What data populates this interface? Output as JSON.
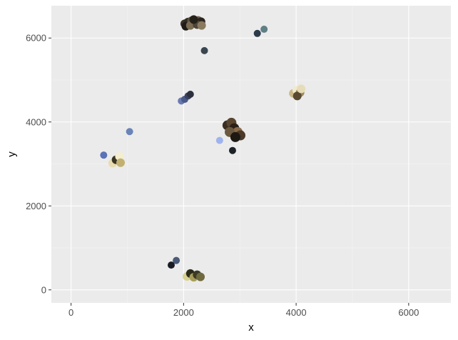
{
  "chart_data": {
    "type": "scatter",
    "title": "",
    "xlabel": "x",
    "ylabel": "y",
    "xlim": [
      -350,
      6750
    ],
    "ylim": [
      -310,
      6770
    ],
    "x_ticks": [
      0,
      2000,
      4000,
      6000
    ],
    "x_tick_labels": [
      "0",
      "2000",
      "4000",
      "6000"
    ],
    "y_ticks": [
      0,
      2000,
      4000,
      6000
    ],
    "y_tick_labels": [
      "0",
      "2000",
      "4000",
      "6000"
    ],
    "grid": true,
    "legend": "none",
    "colors": {
      "panel_background": "#ebebeb",
      "grid_major": "#ffffff",
      "grid_minor": "#f5f5f5",
      "tick_text": "#4d4d4d",
      "tick_mark": "#333333",
      "axis_title": "#000000"
    },
    "points": [
      {
        "x": 2020,
        "y": 6340,
        "color": "#3b3228",
        "size": 6
      },
      {
        "x": 2080,
        "y": 6380,
        "color": "#2e2a22",
        "size": 6
      },
      {
        "x": 2140,
        "y": 6410,
        "color": "#5a5040",
        "size": 6
      },
      {
        "x": 2200,
        "y": 6370,
        "color": "#433a2e",
        "size": 6
      },
      {
        "x": 2260,
        "y": 6420,
        "color": "#6b5f4c",
        "size": 6
      },
      {
        "x": 2310,
        "y": 6390,
        "color": "#2a2520",
        "size": 6
      },
      {
        "x": 2040,
        "y": 6280,
        "color": "#1f1c18",
        "size": 6
      },
      {
        "x": 2120,
        "y": 6300,
        "color": "#7a6b52",
        "size": 6
      },
      {
        "x": 2240,
        "y": 6320,
        "color": "#4e4536",
        "size": 6
      },
      {
        "x": 2320,
        "y": 6300,
        "color": "#8a7a5e",
        "size": 6
      },
      {
        "x": 2180,
        "y": 6440,
        "color": "#252119",
        "size": 6
      },
      {
        "x": 3310,
        "y": 6110,
        "color": "#2c3a4a",
        "size": 5
      },
      {
        "x": 3430,
        "y": 6210,
        "color": "#5f7f86",
        "size": 5
      },
      {
        "x": 2370,
        "y": 5700,
        "color": "#39454f",
        "size": 5
      },
      {
        "x": 1960,
        "y": 4500,
        "color": "#6a7bb0",
        "size": 5
      },
      {
        "x": 2020,
        "y": 4540,
        "color": "#4a5a8a",
        "size": 5
      },
      {
        "x": 2080,
        "y": 4620,
        "color": "#3a4260",
        "size": 5
      },
      {
        "x": 2120,
        "y": 4660,
        "color": "#2b2f3e",
        "size": 5
      },
      {
        "x": 3950,
        "y": 4680,
        "color": "#c9b98a",
        "size": 6
      },
      {
        "x": 4010,
        "y": 4760,
        "color": "#f0ead0",
        "size": 6
      },
      {
        "x": 4070,
        "y": 4700,
        "color": "#a08a5a",
        "size": 6
      },
      {
        "x": 4020,
        "y": 4620,
        "color": "#5a4a30",
        "size": 6
      },
      {
        "x": 4090,
        "y": 4790,
        "color": "#e6ddb8",
        "size": 6
      },
      {
        "x": 2780,
        "y": 3920,
        "color": "#3a2e22",
        "size": 7
      },
      {
        "x": 2850,
        "y": 3980,
        "color": "#5a4630",
        "size": 7
      },
      {
        "x": 2900,
        "y": 3850,
        "color": "#2a2018",
        "size": 7
      },
      {
        "x": 2960,
        "y": 3760,
        "color": "#8a6a48",
        "size": 7
      },
      {
        "x": 3010,
        "y": 3680,
        "color": "#4a3a2a",
        "size": 7
      },
      {
        "x": 2820,
        "y": 3760,
        "color": "#6b5a40",
        "size": 7
      },
      {
        "x": 2920,
        "y": 3640,
        "color": "#1e1812",
        "size": 7
      },
      {
        "x": 2640,
        "y": 3560,
        "color": "#9fb3ee",
        "size": 5
      },
      {
        "x": 2870,
        "y": 3320,
        "color": "#1d2128",
        "size": 5
      },
      {
        "x": 1040,
        "y": 3770,
        "color": "#6a84b8",
        "size": 5
      },
      {
        "x": 580,
        "y": 3210,
        "color": "#5a72b8",
        "size": 5
      },
      {
        "x": 740,
        "y": 3020,
        "color": "#e8dcb0",
        "size": 6
      },
      {
        "x": 800,
        "y": 3100,
        "color": "#3a3422",
        "size": 6
      },
      {
        "x": 860,
        "y": 3180,
        "color": "#f4eecf",
        "size": 6
      },
      {
        "x": 880,
        "y": 3030,
        "color": "#c2b070",
        "size": 6
      },
      {
        "x": 1870,
        "y": 700,
        "color": "#4a5a78",
        "size": 5
      },
      {
        "x": 1780,
        "y": 590,
        "color": "#1a1c24",
        "size": 5
      },
      {
        "x": 2060,
        "y": 320,
        "color": "#d8d090",
        "size": 6
      },
      {
        "x": 2120,
        "y": 390,
        "color": "#2a2a18",
        "size": 6
      },
      {
        "x": 2180,
        "y": 300,
        "color": "#a89e5a",
        "size": 6
      },
      {
        "x": 2240,
        "y": 360,
        "color": "#3c3a26",
        "size": 6
      },
      {
        "x": 2300,
        "y": 310,
        "color": "#6e6a3e",
        "size": 6
      }
    ]
  }
}
